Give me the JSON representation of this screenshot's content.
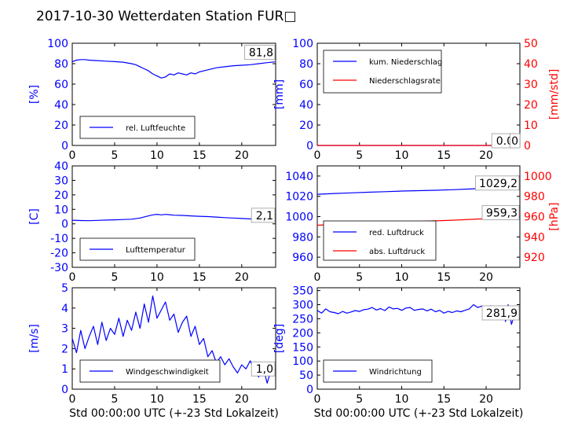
{
  "title": "2017-10-30 Wetterdaten Station FUR□",
  "colors": {
    "blue": "#0000ff",
    "red": "#ff0000",
    "black": "#000000"
  },
  "chart_data": [
    {
      "id": "humidity",
      "type": "line",
      "ylabel": "[%]",
      "ylabel_color": "#0000ff",
      "ylim": [
        0,
        100
      ],
      "yticks": [
        0,
        20,
        40,
        60,
        80,
        100
      ],
      "xlim": [
        0,
        24
      ],
      "xticks": [
        0,
        5,
        10,
        15,
        20
      ],
      "annotation": "81,8",
      "legend": {
        "position": "lower-left",
        "entries": [
          {
            "label": "rel. Luftfeuchte",
            "color": "#0000ff"
          }
        ]
      },
      "series": [
        {
          "name": "rel. Luftfeuchte",
          "color": "#0000ff",
          "axis": "left",
          "x": [
            0,
            0.5,
            1,
            1.5,
            2,
            3,
            4,
            5,
            6,
            7,
            7.5,
            8,
            8.5,
            9,
            9.5,
            10,
            10.5,
            11,
            11.5,
            12,
            12.5,
            13,
            13.5,
            14,
            14.5,
            15,
            16,
            17,
            18,
            19,
            20,
            21,
            22,
            23,
            23.9
          ],
          "y": [
            82,
            83.5,
            84,
            84,
            83.5,
            83,
            82.5,
            82,
            81.5,
            80,
            79,
            77,
            75,
            73,
            70,
            68,
            66,
            67,
            70,
            69,
            71,
            70,
            69,
            71,
            70,
            72,
            74,
            76,
            77,
            78,
            78.5,
            79,
            80,
            81,
            81.8
          ]
        }
      ]
    },
    {
      "id": "precip",
      "type": "line",
      "ylabel": "[mm]",
      "ylabel_color": "#0000ff",
      "ylabel_right": "[mm/std]",
      "ylabel_right_color": "#ff0000",
      "ylim": [
        0,
        100
      ],
      "yticks": [
        0,
        20,
        40,
        60,
        80,
        100
      ],
      "ylim_right": [
        0,
        50
      ],
      "yticks_right": [
        0,
        10,
        20,
        30,
        40,
        50
      ],
      "xlim": [
        0,
        24
      ],
      "xticks": [
        0,
        5,
        10,
        15,
        20
      ],
      "annotation": "0.0",
      "annotation_right": "0",
      "legend": {
        "position": "top-left",
        "entries": [
          {
            "label": "kum. Niederschlag",
            "color": "#0000ff"
          },
          {
            "label": "Niederschlagsrate",
            "color": "#ff0000"
          }
        ]
      },
      "series": [
        {
          "name": "kum. Niederschlag",
          "color": "#0000ff",
          "axis": "left",
          "x": [
            0,
            24
          ],
          "y": [
            0,
            0
          ]
        },
        {
          "name": "Niederschlagsrate",
          "color": "#ff0000",
          "axis": "right",
          "x": [
            0,
            24
          ],
          "y": [
            0,
            0
          ]
        }
      ]
    },
    {
      "id": "temperature",
      "type": "line",
      "ylabel": "[C]",
      "ylabel_color": "#0000ff",
      "ylim": [
        -30,
        40
      ],
      "yticks": [
        -30,
        -20,
        -10,
        0,
        10,
        20,
        30,
        40
      ],
      "xlim": [
        0,
        24
      ],
      "xticks": [
        0,
        5,
        10,
        15,
        20
      ],
      "annotation": "2,1",
      "legend": {
        "position": "lower-left",
        "entries": [
          {
            "label": "Lufttemperatur",
            "color": "#0000ff"
          }
        ]
      },
      "series": [
        {
          "name": "Lufttemperatur",
          "color": "#0000ff",
          "axis": "left",
          "x": [
            0,
            1,
            2,
            3,
            4,
            5,
            6,
            7,
            8,
            8.5,
            9,
            9.5,
            10,
            10.5,
            11,
            11.5,
            12,
            13,
            14,
            15,
            16,
            17,
            18,
            19,
            20,
            21,
            22,
            23,
            23.9
          ],
          "y": [
            2.5,
            2.3,
            2.2,
            2.4,
            2.6,
            2.8,
            3,
            3.2,
            4,
            4.8,
            5.5,
            6.2,
            6.6,
            6.2,
            6.5,
            6.3,
            6,
            5.8,
            5.5,
            5.2,
            5,
            4.7,
            4.3,
            4,
            3.7,
            3.4,
            3.1,
            2.6,
            2.1
          ]
        }
      ]
    },
    {
      "id": "pressure",
      "type": "line",
      "ylabel": "",
      "ylabel_color": "#0000ff",
      "ylabel_right": "[hPa]",
      "ylabel_right_color": "#ff0000",
      "ylim": [
        950,
        1050
      ],
      "yticks": [
        960,
        980,
        1000,
        1020,
        1040
      ],
      "ylim_right": [
        910,
        1010
      ],
      "yticks_right": [
        920,
        940,
        960,
        980,
        1000
      ],
      "xlim": [
        0,
        24
      ],
      "xticks": [
        0,
        5,
        10,
        15,
        20
      ],
      "annotation": "1029,2",
      "annotation_right": "959,3",
      "legend": {
        "position": "lower-left",
        "entries": [
          {
            "label": "red. Luftdruck",
            "color": "#0000ff"
          },
          {
            "label": "abs. Luftdruck",
            "color": "#ff0000"
          }
        ]
      },
      "series": [
        {
          "name": "red. Luftdruck",
          "color": "#0000ff",
          "axis": "left",
          "x": [
            0,
            2,
            4,
            6,
            8,
            10,
            12,
            14,
            16,
            18,
            20,
            22,
            23.9
          ],
          "y": [
            1022,
            1022.8,
            1023.4,
            1024,
            1024.6,
            1025.2,
            1025.6,
            1026,
            1026.5,
            1027.2,
            1028,
            1028.8,
            1029.2
          ]
        },
        {
          "name": "abs. Luftdruck",
          "color": "#ff0000",
          "axis": "right",
          "x": [
            0,
            2,
            4,
            6,
            8,
            10,
            12,
            14,
            16,
            18,
            20,
            22,
            23.9
          ],
          "y": [
            951.5,
            952.3,
            953,
            953.6,
            954.2,
            954.8,
            955.3,
            955.8,
            956.4,
            957.2,
            958,
            958.8,
            959.3
          ]
        }
      ]
    },
    {
      "id": "windspeed",
      "type": "line",
      "ylabel": "[m/s]",
      "ylabel_color": "#0000ff",
      "xlabel": "Std 00:00:00 UTC (+-23 Std Lokalzeit)",
      "ylim": [
        0,
        5
      ],
      "yticks": [
        0,
        1,
        2,
        3,
        4,
        5
      ],
      "xlim": [
        0,
        24
      ],
      "xticks": [
        0,
        5,
        10,
        15,
        20
      ],
      "annotation": "1,0",
      "legend": {
        "position": "lower-left",
        "entries": [
          {
            "label": "Windgeschwindigkeit",
            "color": "#0000ff"
          }
        ]
      },
      "series": [
        {
          "name": "Windgeschwindigkeit",
          "color": "#0000ff",
          "axis": "left",
          "x": [
            0,
            0.5,
            1,
            1.5,
            2,
            2.5,
            3,
            3.5,
            4,
            4.5,
            5,
            5.5,
            6,
            6.5,
            7,
            7.5,
            8,
            8.5,
            9,
            9.5,
            10,
            10.5,
            11,
            11.5,
            12,
            12.5,
            13,
            13.5,
            14,
            14.5,
            15,
            15.5,
            16,
            16.5,
            17,
            17.5,
            18,
            18.5,
            19,
            19.5,
            20,
            20.5,
            21,
            21.5,
            22,
            22.5,
            23,
            23.5,
            23.9
          ],
          "y": [
            2.5,
            1.8,
            2.9,
            2.0,
            2.6,
            3.1,
            2.2,
            3.3,
            2.4,
            3.0,
            2.7,
            3.5,
            2.6,
            3.4,
            2.9,
            3.8,
            3.0,
            4.2,
            3.3,
            4.6,
            3.5,
            3.9,
            4.3,
            3.4,
            3.7,
            2.8,
            3.3,
            3.6,
            2.6,
            3.1,
            2.2,
            2.5,
            1.6,
            1.9,
            1.3,
            1.6,
            1.2,
            1.5,
            1.1,
            0.8,
            1.2,
            1.0,
            1.4,
            0.9,
            0.6,
            1.1,
            0.3,
            1.0,
            1.0
          ]
        }
      ]
    },
    {
      "id": "winddir",
      "type": "line",
      "ylabel": "[deg]",
      "ylabel_color": "#0000ff",
      "xlabel": "Std 00:00:00 UTC (+-23 Std Lokalzeit)",
      "ylim": [
        0,
        360
      ],
      "yticks": [
        0,
        50,
        100,
        150,
        200,
        250,
        300,
        350
      ],
      "xlim": [
        0,
        24
      ],
      "xticks": [
        0,
        5,
        10,
        15,
        20
      ],
      "annotation": "281,9",
      "legend": {
        "position": "lower-left",
        "entries": [
          {
            "label": "Windrichtung",
            "color": "#0000ff"
          }
        ]
      },
      "series": [
        {
          "name": "Windrichtung",
          "color": "#0000ff",
          "axis": "left",
          "x": [
            0,
            0.5,
            1,
            1.5,
            2,
            2.5,
            3,
            3.5,
            4,
            4.5,
            5,
            5.5,
            6,
            6.5,
            7,
            7.5,
            8,
            8.5,
            9,
            9.5,
            10,
            10.5,
            11,
            11.5,
            12,
            12.5,
            13,
            13.5,
            14,
            14.5,
            15,
            15.5,
            16,
            16.5,
            17,
            17.5,
            18,
            18.5,
            19,
            19.5,
            20,
            20.5,
            21,
            21.5,
            22,
            22.3,
            22.6,
            23,
            23.3,
            23.6,
            23.9
          ],
          "y": [
            280,
            270,
            285,
            275,
            272,
            268,
            276,
            270,
            274,
            279,
            276,
            282,
            284,
            290,
            281,
            286,
            279,
            292,
            285,
            287,
            280,
            288,
            290,
            280,
            283,
            285,
            278,
            284,
            275,
            280,
            270,
            276,
            272,
            278,
            275,
            280,
            285,
            300,
            290,
            295,
            292,
            296,
            290,
            294,
            288,
            240,
            300,
            230,
            260,
            292,
            282
          ]
        }
      ]
    }
  ]
}
